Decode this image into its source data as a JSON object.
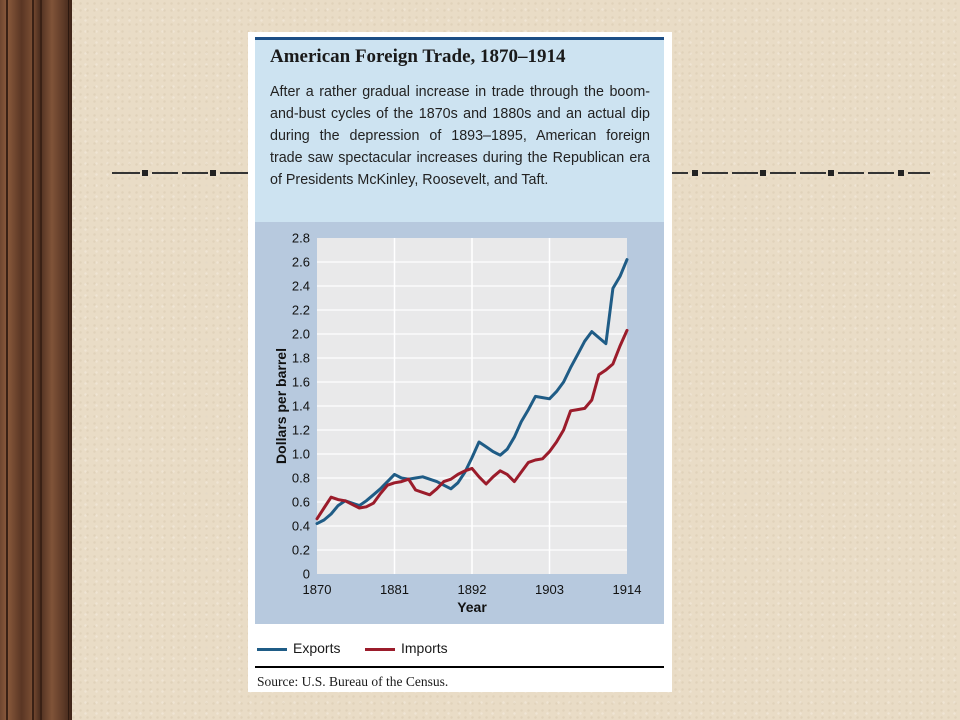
{
  "card": {
    "title": "American Foreign Trade, 1870–1914",
    "description": "After a rather gradual increase in trade through the boom-and-bust cycles of the 1870s and 1880s and an actual dip during the depression of 1893–1895, American foreign trade saw spectacular increases during the Republican era of Presidents McKinley, Roosevelt, and Taft.",
    "source": "Source: U.S. Bureau of the Census."
  },
  "colors": {
    "exports": "#1f5c86",
    "imports": "#9b1c2b",
    "plot_bg": "#e9e9ea",
    "panel_bg": "#b7c9de",
    "header_bg": "#cde3f1"
  },
  "chart_data": {
    "type": "line",
    "title": "American Foreign Trade, 1870–1914",
    "xlabel": "Year",
    "ylabel": "Dollars per barrel",
    "xlim": [
      1870,
      1914
    ],
    "ylim": [
      0,
      2.8
    ],
    "x_ticks": [
      1870,
      1881,
      1892,
      1903,
      1914
    ],
    "y_ticks": [
      0,
      0.2,
      0.4,
      0.6,
      0.8,
      1.0,
      1.2,
      1.4,
      1.6,
      1.8,
      2.0,
      2.2,
      2.4,
      2.6,
      2.8
    ],
    "y_tick_labels": [
      "0",
      "0.2",
      "0.4",
      "0.6",
      "0.8",
      "1.0",
      "1.2",
      "1.4",
      "1.6",
      "1.8",
      "2.0",
      "2.2",
      "2.4",
      "2.6",
      "2.8"
    ],
    "grid": true,
    "legend_position": "bottom",
    "x": [
      1870,
      1871,
      1872,
      1873,
      1874,
      1875,
      1876,
      1877,
      1878,
      1879,
      1880,
      1881,
      1882,
      1883,
      1884,
      1885,
      1886,
      1887,
      1888,
      1889,
      1890,
      1891,
      1892,
      1893,
      1894,
      1895,
      1896,
      1897,
      1898,
      1899,
      1900,
      1901,
      1902,
      1903,
      1904,
      1905,
      1906,
      1907,
      1908,
      1909,
      1910,
      1911,
      1912,
      1913,
      1914
    ],
    "series": [
      {
        "name": "Exports",
        "values": [
          0.42,
          0.45,
          0.5,
          0.57,
          0.61,
          0.59,
          0.57,
          0.61,
          0.66,
          0.71,
          0.77,
          0.83,
          0.8,
          0.79,
          0.8,
          0.81,
          0.79,
          0.77,
          0.74,
          0.71,
          0.76,
          0.85,
          0.97,
          1.1,
          1.06,
          1.02,
          0.99,
          1.04,
          1.14,
          1.27,
          1.37,
          1.48,
          1.47,
          1.46,
          1.52,
          1.6,
          1.72,
          1.83,
          1.94,
          2.02,
          1.97,
          1.92,
          2.38,
          2.48,
          2.62
        ]
      },
      {
        "name": "Imports",
        "values": [
          0.46,
          0.55,
          0.64,
          0.62,
          0.61,
          0.58,
          0.55,
          0.56,
          0.59,
          0.67,
          0.74,
          0.76,
          0.77,
          0.79,
          0.7,
          0.68,
          0.66,
          0.71,
          0.77,
          0.79,
          0.83,
          0.86,
          0.88,
          0.81,
          0.75,
          0.81,
          0.86,
          0.83,
          0.77,
          0.85,
          0.93,
          0.95,
          0.96,
          1.02,
          1.1,
          1.2,
          1.36,
          1.37,
          1.38,
          1.45,
          1.66,
          1.7,
          1.75,
          1.9,
          2.03
        ]
      }
    ]
  }
}
